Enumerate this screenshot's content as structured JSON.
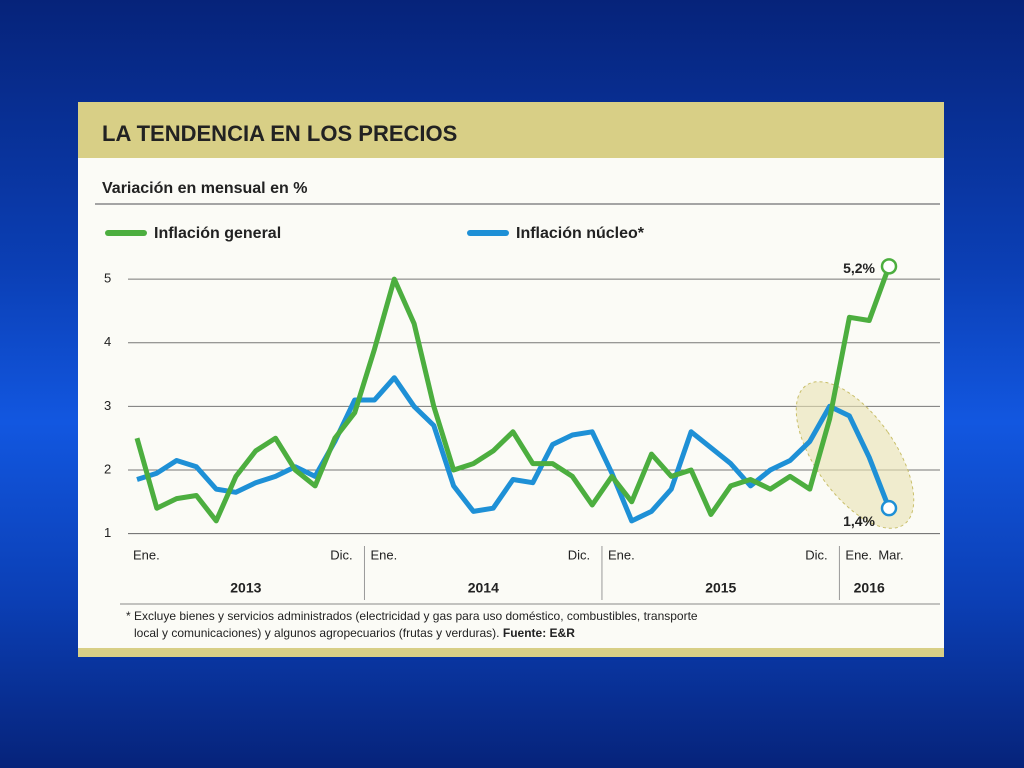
{
  "chart_data": {
    "type": "line",
    "title": "LA TENDENCIA EN LOS PRECIOS",
    "subtitle": "Variación en mensual en %",
    "categories": [
      "Ene.",
      null,
      null,
      null,
      null,
      null,
      null,
      null,
      null,
      null,
      null,
      "Dic.",
      "Ene.",
      null,
      null,
      null,
      null,
      null,
      null,
      null,
      null,
      null,
      null,
      "Dic.",
      "Ene.",
      null,
      null,
      null,
      null,
      null,
      null,
      null,
      null,
      null,
      null,
      "Dic.",
      "Ene.",
      null,
      "Mar."
    ],
    "years": [
      "2013",
      "2014",
      "2015",
      "2016"
    ],
    "series": [
      {
        "name": "Inflación general",
        "color": "#4cae3f",
        "values": [
          2.5,
          1.4,
          1.55,
          1.6,
          1.2,
          1.9,
          2.3,
          2.5,
          2.0,
          1.75,
          2.5,
          2.9,
          3.9,
          5.0,
          4.3,
          3.0,
          2.0,
          2.1,
          2.3,
          2.6,
          2.1,
          2.1,
          1.9,
          1.45,
          1.9,
          1.5,
          2.25,
          1.9,
          2.0,
          1.3,
          1.75,
          1.85,
          1.7,
          1.9,
          1.7,
          2.8,
          4.4,
          4.35,
          5.2
        ]
      },
      {
        "name": "Inflación núcleo*",
        "color": "#1e90d6",
        "values": [
          1.85,
          1.95,
          2.15,
          2.05,
          1.7,
          1.65,
          1.8,
          1.9,
          2.05,
          1.9,
          2.45,
          3.1,
          3.1,
          3.45,
          3.0,
          2.7,
          1.75,
          1.35,
          1.4,
          1.85,
          1.8,
          2.4,
          2.55,
          2.6,
          1.95,
          1.2,
          1.35,
          1.7,
          2.6,
          2.35,
          2.1,
          1.75,
          2.0,
          2.15,
          2.45,
          3.0,
          2.85,
          2.2,
          1.4
        ]
      }
    ],
    "annotations": [
      "5,2%",
      "1,4%"
    ],
    "ylim": [
      0.9,
      5.3
    ],
    "yticks": [
      1,
      2,
      3,
      4,
      5
    ],
    "grid": true,
    "footnote": [
      "* Excluye bienes y servicios administrados (electricidad y gas para uso doméstico, combustibles, transporte",
      "local y comunicaciones) y algunos agropecuarios (frutas y verduras)."
    ],
    "source": "Fuente: E&R"
  }
}
